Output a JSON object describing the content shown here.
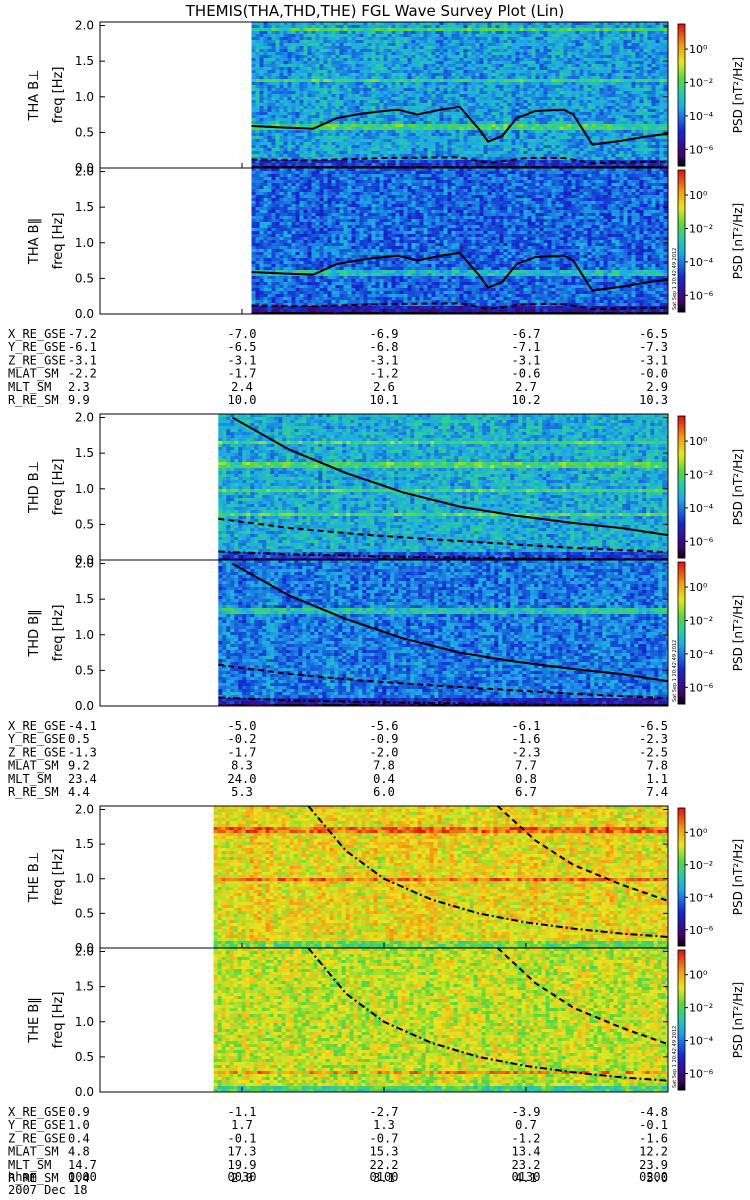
{
  "title": "THEMIS(THA,THD,THE) FGL Wave Survey Plot (Lin)",
  "colorbar": {
    "label": "PSD [nT²/Hz]",
    "ticks": [
      "10⁰",
      "10⁻²",
      "10⁻⁴",
      "10⁻⁶"
    ],
    "tick_exponents": [
      0,
      -2,
      -4,
      -6
    ],
    "range_exp": [
      -7,
      1.5
    ],
    "stamp": "Sat Sep  1 20:42:49 2012"
  },
  "axis": {
    "y_title": "freq [Hz]",
    "y_ticks": [
      "0.0",
      "0.5",
      "1.0",
      "1.5",
      "2.0"
    ],
    "y_tick_values": [
      0.0,
      0.5,
      1.0,
      1.5,
      2.0
    ],
    "ylim": [
      0,
      2.05
    ],
    "time_ticks": [
      "0000",
      "0030",
      "0100",
      "0130",
      "0200"
    ],
    "time_tick_minutes": [
      0,
      30,
      60,
      90,
      120
    ],
    "date": "2007 Dec 18",
    "time_row_label": "hhmm"
  },
  "colors": {
    "spectrogram_low": "#1a3fd0",
    "spectrogram_mid": "#2fcfb0",
    "spectrogram_high": "#e8e020",
    "hot": "#e02020"
  },
  "groups": [
    {
      "probe": "THA",
      "panels": [
        {
          "label": "THA B⊥"
        },
        {
          "label": "THA B‖"
        }
      ],
      "orbit_rows": [
        {
          "name": "X_RE_GSE",
          "values": [
            "-7.2",
            "-7.0",
            "-6.9",
            "-6.7",
            "-6.5"
          ]
        },
        {
          "name": "Y_RE_GSE",
          "values": [
            "-6.1",
            "-6.5",
            "-6.8",
            "-7.1",
            "-7.3"
          ]
        },
        {
          "name": "Z_RE_GSE",
          "values": [
            "-3.1",
            "-3.1",
            "-3.1",
            "-3.1",
            "-3.1"
          ]
        },
        {
          "name": "MLAT_SM",
          "values": [
            "-2.2",
            "-1.7",
            "-1.2",
            "-0.6",
            "-0.0"
          ]
        },
        {
          "name": "MLT_SM",
          "values": [
            "2.3",
            "2.4",
            "2.6",
            "2.7",
            "2.9"
          ]
        },
        {
          "name": "R_RE_SM",
          "values": [
            "9.9",
            "10.0",
            "10.1",
            "10.2",
            "10.3"
          ]
        }
      ]
    },
    {
      "probe": "THD",
      "panels": [
        {
          "label": "THD B⊥"
        },
        {
          "label": "THD B‖"
        }
      ],
      "orbit_rows": [
        {
          "name": "X_RE_GSE",
          "values": [
            "-4.1",
            "-5.0",
            "-5.6",
            "-6.1",
            "-6.5"
          ]
        },
        {
          "name": "Y_RE_GSE",
          "values": [
            "0.5",
            "-0.2",
            "-0.9",
            "-1.6",
            "-2.3"
          ]
        },
        {
          "name": "Z_RE_GSE",
          "values": [
            "-1.3",
            "-1.7",
            "-2.0",
            "-2.3",
            "-2.5"
          ]
        },
        {
          "name": "MLAT_SM",
          "values": [
            "9.2",
            "8.3",
            "7.8",
            "7.7",
            "7.8"
          ]
        },
        {
          "name": "MLT_SM",
          "values": [
            "23.4",
            "24.0",
            "0.4",
            "0.8",
            "1.1"
          ]
        },
        {
          "name": "R_RE_SM",
          "values": [
            "4.4",
            "5.3",
            "6.0",
            "6.7",
            "7.4"
          ]
        }
      ]
    },
    {
      "probe": "THE",
      "panels": [
        {
          "label": "THE B⊥"
        },
        {
          "label": "THE B‖"
        }
      ],
      "orbit_rows": [
        {
          "name": "X_RE_GSE",
          "values": [
            "0.9",
            "-1.1",
            "-2.7",
            "-3.9",
            "-4.8"
          ]
        },
        {
          "name": "Y_RE_GSE",
          "values": [
            "1.0",
            "1.7",
            "1.3",
            "0.7",
            "-0.1"
          ]
        },
        {
          "name": "Z_RE_GSE",
          "values": [
            "0.4",
            "-0.1",
            "-0.7",
            "-1.2",
            "-1.6"
          ]
        },
        {
          "name": "MLAT_SM",
          "values": [
            "4.8",
            "17.3",
            "15.3",
            "13.4",
            "12.2"
          ]
        },
        {
          "name": "MLT_SM",
          "values": [
            "14.7",
            "19.9",
            "22.2",
            "23.2",
            "23.9"
          ]
        },
        {
          "name": "R_RE_SM",
          "values": [
            "1.4",
            "2.0",
            "3.1",
            "4.1",
            "5.0"
          ]
        }
      ]
    }
  ],
  "chart_data": {
    "type": "heatmap",
    "title": "THEMIS(THA,THD,THE) FGL Wave Survey Plot (Lin)",
    "x_unit": "hhmm",
    "x_range_minutes": [
      0,
      120
    ],
    "ylabel": "freq [Hz]",
    "ylim": [
      0,
      2.05
    ],
    "color_scale": "log10 PSD [nT²/Hz], 1e-7 to 1e1",
    "panels": [
      {
        "label": "THA B⊥",
        "data_start_minute": 32,
        "base_log_psd": -3.5,
        "lines": [
          {
            "style": "solid",
            "points": [
              [
                32,
                0.59
              ],
              [
                38,
                0.57
              ],
              [
                45,
                0.55
              ],
              [
                50,
                0.7
              ],
              [
                55,
                0.76
              ],
              [
                60,
                0.8
              ],
              [
                63,
                0.82
              ],
              [
                67,
                0.75
              ],
              [
                72,
                0.82
              ],
              [
                76,
                0.86
              ],
              [
                80,
                0.55
              ],
              [
                82,
                0.37
              ],
              [
                85,
                0.45
              ],
              [
                88,
                0.7
              ],
              [
                92,
                0.8
              ],
              [
                98,
                0.82
              ],
              [
                100,
                0.75
              ],
              [
                104,
                0.33
              ],
              [
                110,
                0.38
              ],
              [
                116,
                0.45
              ],
              [
                120,
                0.48
              ]
            ]
          },
          {
            "style": "dashed",
            "points": [
              [
                32,
                0.12
              ],
              [
                45,
                0.11
              ],
              [
                60,
                0.14
              ],
              [
                76,
                0.15
              ],
              [
                82,
                0.07
              ],
              [
                90,
                0.14
              ],
              [
                98,
                0.14
              ],
              [
                104,
                0.07
              ],
              [
                120,
                0.09
              ]
            ]
          },
          {
            "style": "dashdot",
            "points": [
              [
                32,
                0.01
              ],
              [
                120,
                0.01
              ]
            ]
          }
        ],
        "horizontal_bands_hz": [
          1.25,
          0.6,
          1.97
        ]
      },
      {
        "label": "THA B‖",
        "data_start_minute": 32,
        "base_log_psd": -4.2,
        "lines": [
          {
            "style": "solid",
            "points": [
              [
                32,
                0.59
              ],
              [
                38,
                0.57
              ],
              [
                45,
                0.55
              ],
              [
                50,
                0.7
              ],
              [
                55,
                0.76
              ],
              [
                60,
                0.8
              ],
              [
                63,
                0.82
              ],
              [
                67,
                0.75
              ],
              [
                72,
                0.82
              ],
              [
                76,
                0.86
              ],
              [
                80,
                0.55
              ],
              [
                82,
                0.37
              ],
              [
                85,
                0.45
              ],
              [
                88,
                0.7
              ],
              [
                92,
                0.8
              ],
              [
                98,
                0.82
              ],
              [
                100,
                0.75
              ],
              [
                104,
                0.33
              ],
              [
                110,
                0.38
              ],
              [
                116,
                0.45
              ],
              [
                120,
                0.48
              ]
            ]
          },
          {
            "style": "dashed",
            "points": [
              [
                32,
                0.12
              ],
              [
                45,
                0.11
              ],
              [
                60,
                0.14
              ],
              [
                76,
                0.15
              ],
              [
                82,
                0.07
              ],
              [
                90,
                0.14
              ],
              [
                98,
                0.14
              ],
              [
                104,
                0.07
              ],
              [
                120,
                0.09
              ]
            ]
          },
          {
            "style": "dashdot",
            "points": [
              [
                32,
                0.01
              ],
              [
                120,
                0.01
              ]
            ]
          }
        ],
        "horizontal_bands_hz": [
          0.6
        ]
      },
      {
        "label": "THD B⊥",
        "data_start_minute": 25,
        "base_log_psd": -3.3,
        "lines": [
          {
            "style": "solid",
            "points": [
              [
                28,
                2.0
              ],
              [
                40,
                1.55
              ],
              [
                52,
                1.22
              ],
              [
                64,
                0.95
              ],
              [
                76,
                0.75
              ],
              [
                88,
                0.62
              ],
              [
                100,
                0.52
              ],
              [
                110,
                0.45
              ],
              [
                120,
                0.35
              ]
            ]
          },
          {
            "style": "dashed",
            "points": [
              [
                25,
                0.58
              ],
              [
                40,
                0.45
              ],
              [
                55,
                0.36
              ],
              [
                70,
                0.29
              ],
              [
                85,
                0.23
              ],
              [
                100,
                0.17
              ],
              [
                120,
                0.11
              ]
            ]
          },
          {
            "style": "dashdot",
            "points": [
              [
                25,
                0.12
              ],
              [
                40,
                0.08
              ],
              [
                60,
                0.05
              ],
              [
                90,
                0.02
              ],
              [
                120,
                0.0
              ]
            ]
          }
        ],
        "horizontal_bands_hz": [
          1.0,
          1.68,
          0.67,
          1.35
        ]
      },
      {
        "label": "THD B‖",
        "data_start_minute": 25,
        "base_log_psd": -4.0,
        "lines": [
          {
            "style": "solid",
            "points": [
              [
                28,
                2.0
              ],
              [
                40,
                1.55
              ],
              [
                52,
                1.22
              ],
              [
                64,
                0.95
              ],
              [
                76,
                0.75
              ],
              [
                88,
                0.62
              ],
              [
                100,
                0.52
              ],
              [
                110,
                0.45
              ],
              [
                120,
                0.35
              ]
            ]
          },
          {
            "style": "dashed",
            "points": [
              [
                25,
                0.58
              ],
              [
                40,
                0.45
              ],
              [
                55,
                0.36
              ],
              [
                70,
                0.29
              ],
              [
                85,
                0.23
              ],
              [
                100,
                0.17
              ],
              [
                120,
                0.11
              ]
            ]
          },
          {
            "style": "dashdot",
            "points": [
              [
                25,
                0.12
              ],
              [
                40,
                0.08
              ],
              [
                60,
                0.05
              ],
              [
                90,
                0.02
              ],
              [
                120,
                0.0
              ]
            ]
          }
        ],
        "horizontal_bands_hz": [
          1.35
        ]
      },
      {
        "label": "THE B⊥",
        "data_start_minute": 24,
        "base_log_psd": -0.6,
        "lines": [
          {
            "style": "dashdot",
            "points": [
              [
                44,
                2.05
              ],
              [
                52,
                1.4
              ],
              [
                60,
                1.0
              ],
              [
                70,
                0.7
              ],
              [
                80,
                0.5
              ],
              [
                90,
                0.37
              ],
              [
                100,
                0.28
              ],
              [
                110,
                0.21
              ],
              [
                120,
                0.16
              ]
            ]
          },
          {
            "style": "dashed",
            "points": [
              [
                84,
                2.05
              ],
              [
                92,
                1.55
              ],
              [
                100,
                1.2
              ],
              [
                110,
                0.92
              ],
              [
                120,
                0.68
              ]
            ]
          }
        ],
        "horizontal_bands_hz": [
          1.72,
          1.0
        ]
      },
      {
        "label": "THE B‖",
        "data_start_minute": 24,
        "base_log_psd": -1.0,
        "lines": [
          {
            "style": "dashdot",
            "points": [
              [
                44,
                2.05
              ],
              [
                52,
                1.4
              ],
              [
                60,
                1.0
              ],
              [
                70,
                0.7
              ],
              [
                80,
                0.5
              ],
              [
                90,
                0.37
              ],
              [
                100,
                0.28
              ],
              [
                110,
                0.21
              ],
              [
                120,
                0.16
              ]
            ]
          },
          {
            "style": "dashed",
            "points": [
              [
                84,
                2.05
              ],
              [
                92,
                1.55
              ],
              [
                100,
                1.2
              ],
              [
                110,
                0.92
              ],
              [
                120,
                0.68
              ]
            ]
          }
        ],
        "horizontal_bands_hz": [
          0.3
        ]
      }
    ]
  }
}
